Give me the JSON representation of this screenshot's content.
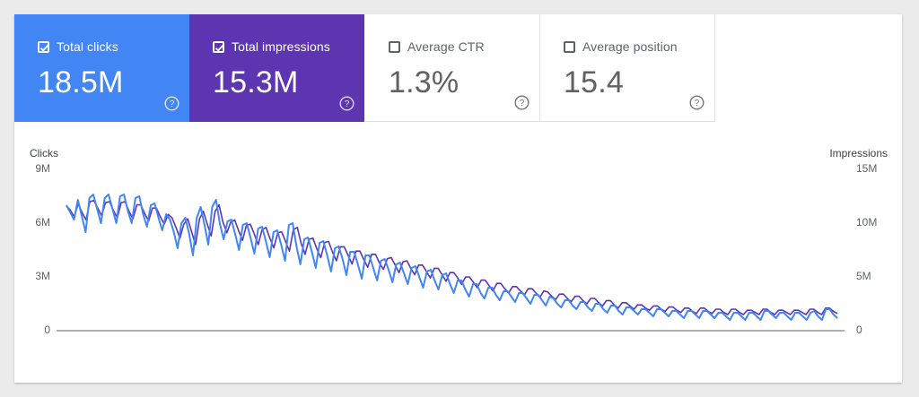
{
  "metrics": [
    {
      "label": "Total clicks",
      "value": "18.5M",
      "checked": true,
      "color": "#4285f4"
    },
    {
      "label": "Total impressions",
      "value": "15.3M",
      "checked": true,
      "color": "#5e35b1"
    },
    {
      "label": "Average CTR",
      "value": "1.3%",
      "checked": false,
      "color": "#ffffff"
    },
    {
      "label": "Average position",
      "value": "15.4",
      "checked": false,
      "color": "#ffffff"
    }
  ],
  "chart_data": {
    "type": "line",
    "left_axis": {
      "title": "Clicks",
      "ticks": [
        "9M",
        "6M",
        "3M",
        "0"
      ],
      "range": [
        0,
        9000000
      ]
    },
    "right_axis": {
      "title": "Impressions",
      "ticks": [
        "15M",
        "10M",
        "5M",
        "0"
      ],
      "range": [
        0,
        15000000
      ]
    },
    "grid": false,
    "series": [
      {
        "axis": "left",
        "color": "#4285f4",
        "values": [
          7.0,
          6.6,
          6.2,
          7.3,
          6.4,
          5.5,
          7.4,
          7.6,
          6.8,
          6.0,
          7.4,
          7.6,
          6.8,
          6.0,
          7.5,
          7.6,
          6.7,
          6.0,
          7.4,
          7.5,
          6.5,
          5.8,
          7.0,
          7.1,
          6.3,
          5.6,
          6.5,
          6.2,
          5.5,
          4.6,
          6.0,
          6.3,
          5.4,
          4.2,
          6.3,
          6.9,
          5.9,
          4.8,
          6.9,
          7.3,
          6.0,
          5.1,
          6.1,
          6.2,
          5.4,
          4.5,
          5.9,
          6.0,
          5.2,
          4.3,
          5.7,
          5.8,
          5.0,
          4.1,
          5.5,
          5.6,
          4.8,
          3.9,
          5.9,
          6.0,
          4.7,
          3.7,
          5.1,
          5.2,
          4.4,
          3.5,
          4.9,
          5.0,
          4.2,
          3.3,
          4.6,
          4.7,
          4.0,
          3.1,
          4.4,
          4.4,
          3.7,
          2.9,
          4.2,
          4.2,
          3.5,
          2.8,
          3.9,
          4.0,
          3.4,
          2.7,
          3.7,
          3.8,
          3.2,
          2.6,
          3.5,
          3.6,
          3.0,
          2.4,
          3.3,
          3.4,
          2.8,
          2.3,
          3.1,
          3.2,
          2.6,
          2.1,
          2.8,
          2.8,
          2.3,
          1.9,
          2.6,
          2.6,
          2.1,
          1.8,
          2.4,
          2.4,
          2.0,
          1.7,
          2.2,
          2.2,
          1.9,
          1.6,
          2.1,
          2.1,
          1.8,
          1.5,
          2.0,
          2.0,
          1.7,
          1.4,
          1.9,
          1.8,
          1.5,
          1.3,
          1.7,
          1.7,
          1.4,
          1.2,
          1.6,
          1.6,
          1.3,
          1.1,
          1.5,
          1.5,
          1.2,
          1.0,
          1.4,
          1.4,
          1.1,
          0.9,
          1.3,
          1.3,
          1.1,
          0.9,
          1.2,
          1.2,
          1.0,
          0.8,
          1.2,
          1.2,
          1.0,
          0.8,
          1.1,
          1.1,
          0.9,
          0.7,
          1.1,
          1.1,
          0.9,
          0.7,
          1.1,
          1.1,
          0.9,
          0.7,
          1.0,
          1.0,
          0.8,
          0.6,
          1.0,
          1.0,
          0.8,
          0.6,
          1.0,
          1.0,
          0.8,
          0.6,
          1.1,
          1.1,
          0.9,
          0.7,
          1.0,
          1.0,
          0.8,
          0.6,
          1.0,
          1.0,
          0.8,
          0.6,
          1.0,
          1.1,
          0.8,
          0.6,
          1.2,
          1.2,
          0.9,
          0.7
        ]
      },
      {
        "axis": "right",
        "color": "#5e35b1",
        "values": [
          11.6,
          11.2,
          10.6,
          11.8,
          11.0,
          10.3,
          12.0,
          12.1,
          11.4,
          10.7,
          11.9,
          12.0,
          11.2,
          10.5,
          11.9,
          12.0,
          11.1,
          10.4,
          11.7,
          11.7,
          10.9,
          10.2,
          11.4,
          11.4,
          10.6,
          9.9,
          10.8,
          10.5,
          9.6,
          8.6,
          9.9,
          10.4,
          9.2,
          8.0,
          10.4,
          11.1,
          9.9,
          8.8,
          11.1,
          11.7,
          10.1,
          9.1,
          10.1,
          10.3,
          9.3,
          8.4,
          9.8,
          9.9,
          9.0,
          8.0,
          9.4,
          9.6,
          8.6,
          7.7,
          9.1,
          9.2,
          8.3,
          7.4,
          9.4,
          9.6,
          8.1,
          7.1,
          8.5,
          8.6,
          7.6,
          6.8,
          8.2,
          8.3,
          7.3,
          6.5,
          7.8,
          7.8,
          7.0,
          6.2,
          7.4,
          7.4,
          6.6,
          5.9,
          7.1,
          7.1,
          6.3,
          5.7,
          6.7,
          6.8,
          6.1,
          5.4,
          6.4,
          6.5,
          5.8,
          5.2,
          6.1,
          6.1,
          5.5,
          4.9,
          5.8,
          5.8,
          5.2,
          4.6,
          5.4,
          5.4,
          4.9,
          4.3,
          5.0,
          5.0,
          4.5,
          4.0,
          4.7,
          4.7,
          4.2,
          3.7,
          4.4,
          4.4,
          3.9,
          3.5,
          4.1,
          4.1,
          3.7,
          3.3,
          3.9,
          3.9,
          3.5,
          3.1,
          3.7,
          3.6,
          3.2,
          2.9,
          3.4,
          3.4,
          3.0,
          2.7,
          3.2,
          3.2,
          2.8,
          2.5,
          3.0,
          3.0,
          2.6,
          2.3,
          2.8,
          2.8,
          2.4,
          2.1,
          2.6,
          2.6,
          2.3,
          2.0,
          2.4,
          2.4,
          2.1,
          1.9,
          2.3,
          2.3,
          2.0,
          1.8,
          2.2,
          2.2,
          1.9,
          1.7,
          2.1,
          2.1,
          1.8,
          1.6,
          2.1,
          2.1,
          1.8,
          1.6,
          2.0,
          2.0,
          1.7,
          1.5,
          2.0,
          2.0,
          1.7,
          1.5,
          1.9,
          1.9,
          1.7,
          1.5,
          2.0,
          2.0,
          1.7,
          1.5,
          1.9,
          1.9,
          1.7,
          1.5,
          1.9,
          1.9,
          1.7,
          1.5,
          2.0,
          2.0,
          1.7,
          1.5,
          2.1,
          2.1,
          1.8,
          1.6
        ]
      }
    ]
  }
}
